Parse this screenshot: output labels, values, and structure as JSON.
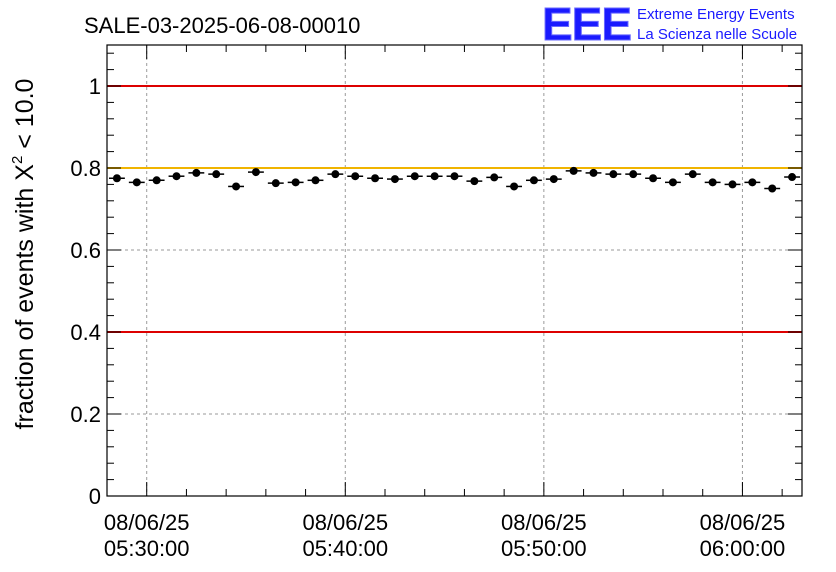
{
  "chart_data": {
    "type": "scatter",
    "title": "SALE-03-2025-06-08-00010",
    "logo": {
      "mark": "EEE",
      "line1": "Extreme Energy Events",
      "line2": "La Scienza nelle Scuole",
      "color": "#1a1aff"
    },
    "ylabel": {
      "prefix": "fraction of events with ",
      "symbol": "X",
      "superscript": "2",
      "suffix": " < 10.0"
    },
    "ylim": [
      0,
      1.1
    ],
    "yticks": [
      {
        "value": 0,
        "label": "0"
      },
      {
        "value": 0.2,
        "label": "0.2"
      },
      {
        "value": 0.4,
        "label": "0.4"
      },
      {
        "value": 0.6,
        "label": "0.6"
      },
      {
        "value": 0.8,
        "label": "0.8"
      },
      {
        "value": 1,
        "label": "1"
      }
    ],
    "xlim_minutes": [
      -2,
      33
    ],
    "xticks": [
      {
        "minute": 0,
        "date": "08/06/25",
        "time": "05:30:00"
      },
      {
        "minute": 10,
        "date": "08/06/25",
        "time": "05:40:00"
      },
      {
        "minute": 20,
        "date": "08/06/25",
        "time": "05:50:00"
      },
      {
        "minute": 30,
        "date": "08/06/25",
        "time": "06:00:00"
      }
    ],
    "grid": true,
    "reference_lines": [
      {
        "y": 1.0,
        "color": "#dd0000"
      },
      {
        "y": 0.8,
        "color": "#f0b400"
      },
      {
        "y": 0.4,
        "color": "#dd0000"
      }
    ],
    "bin_width_minutes": 1,
    "series": [
      {
        "name": "fraction",
        "color": "#000000",
        "x_minutes": [
          -1.5,
          -0.5,
          0.5,
          1.5,
          2.5,
          3.5,
          4.5,
          5.5,
          6.5,
          7.5,
          8.5,
          9.5,
          10.5,
          11.5,
          12.5,
          13.5,
          14.5,
          15.5,
          16.5,
          17.5,
          18.5,
          19.5,
          20.5,
          21.5,
          22.5,
          23.5,
          24.5,
          25.5,
          26.5,
          27.5,
          28.5,
          29.5,
          30.5,
          31.5,
          32.5
        ],
        "values": [
          0.775,
          0.765,
          0.77,
          0.78,
          0.788,
          0.785,
          0.755,
          0.79,
          0.763,
          0.765,
          0.77,
          0.785,
          0.78,
          0.775,
          0.773,
          0.78,
          0.78,
          0.78,
          0.768,
          0.777,
          0.755,
          0.77,
          0.773,
          0.793,
          0.788,
          0.785,
          0.785,
          0.775,
          0.765,
          0.785,
          0.765,
          0.76,
          0.765,
          0.75,
          0.778
        ],
        "errors": [
          0.008,
          0.008,
          0.008,
          0.008,
          0.008,
          0.008,
          0.008,
          0.008,
          0.008,
          0.008,
          0.008,
          0.008,
          0.008,
          0.008,
          0.008,
          0.008,
          0.008,
          0.008,
          0.008,
          0.008,
          0.008,
          0.008,
          0.008,
          0.008,
          0.008,
          0.008,
          0.008,
          0.008,
          0.008,
          0.008,
          0.008,
          0.008,
          0.008,
          0.008,
          0.008
        ]
      }
    ]
  }
}
